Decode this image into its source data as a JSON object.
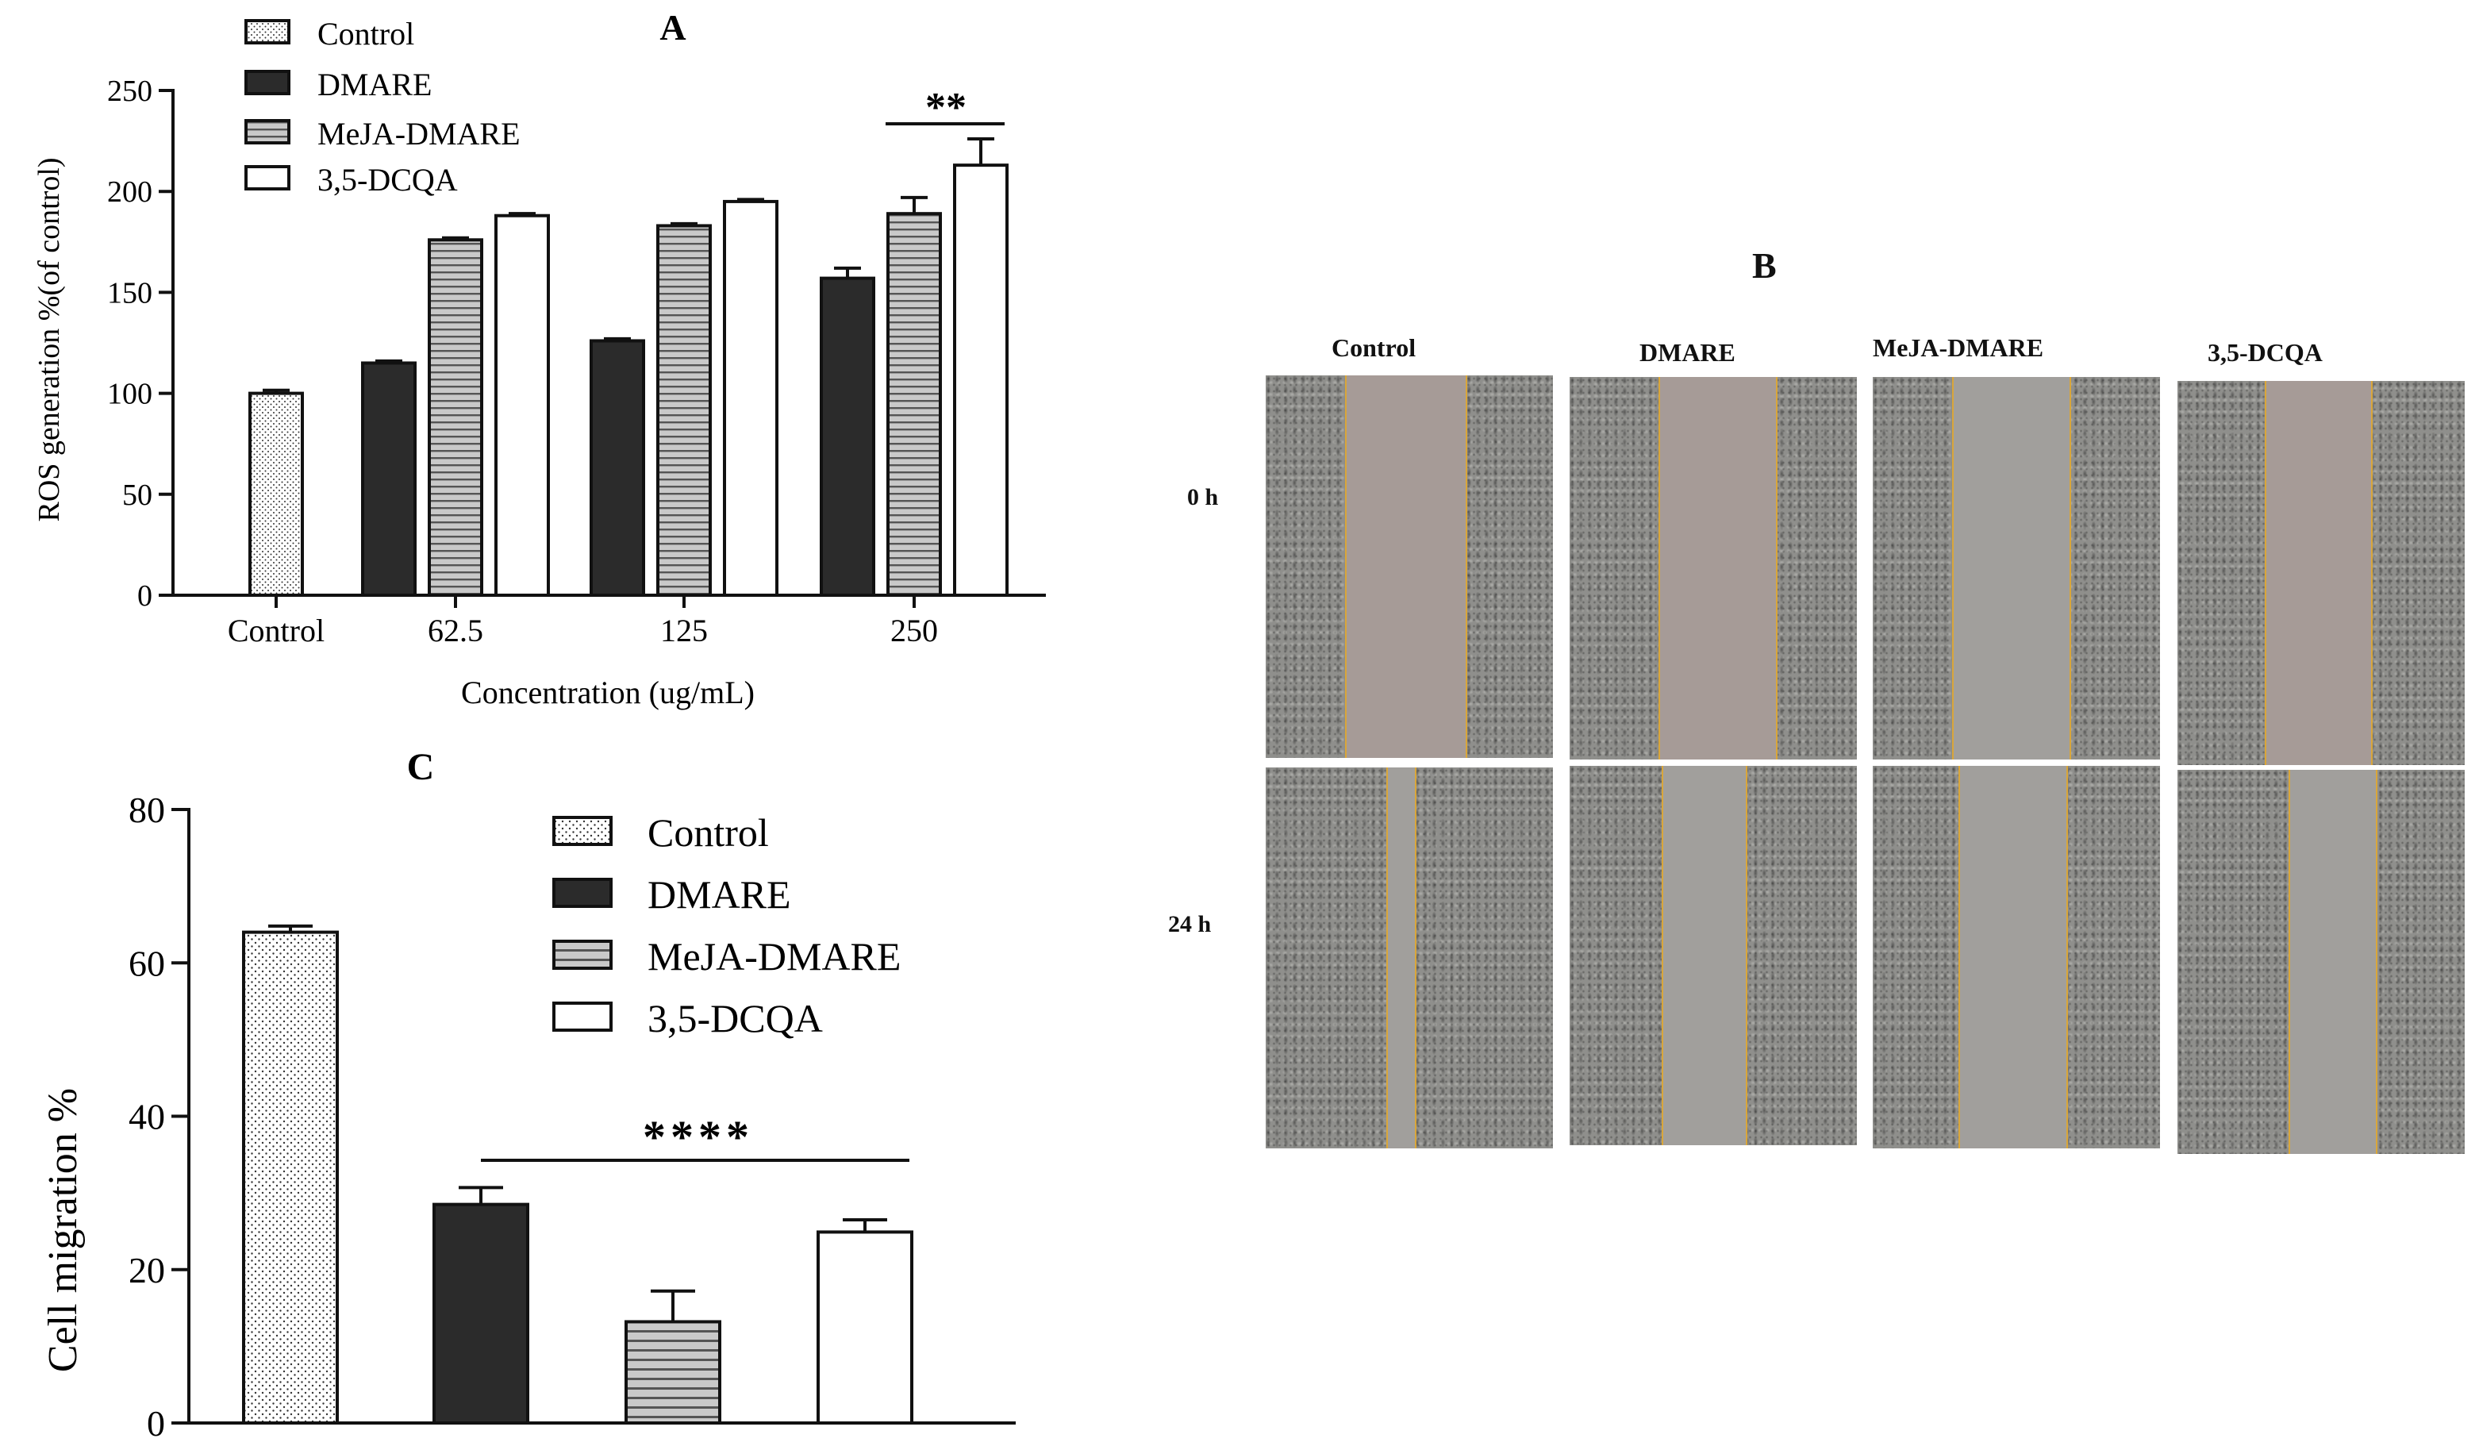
{
  "figure": {
    "panel_a_label": "A",
    "panel_b_label": "B",
    "panel_c_label": "C"
  },
  "chart_data": [
    {
      "id": "A",
      "type": "bar",
      "title": "A",
      "xlabel": "Concentration (ug/mL)",
      "ylabel": "ROS generation %(of control)",
      "ylim": [
        0,
        250
      ],
      "yticks": [
        "0",
        "50",
        "100",
        "150",
        "200",
        "250"
      ],
      "categories": [
        "Control",
        "62.5",
        "125",
        "250"
      ],
      "series": [
        {
          "name": "Control",
          "pattern": "dots",
          "values": [
            100,
            null,
            null,
            null
          ],
          "errors": [
            1.5,
            null,
            null,
            null
          ]
        },
        {
          "name": "DMARE",
          "pattern": "solid",
          "values": [
            null,
            115,
            126,
            157
          ],
          "errors": [
            null,
            1,
            1,
            5
          ]
        },
        {
          "name": "MeJA-DMARE",
          "pattern": "hlines",
          "values": [
            null,
            176,
            183,
            189
          ],
          "errors": [
            null,
            1,
            1,
            8
          ]
        },
        {
          "name": "3,5-DCQA",
          "pattern": "open",
          "values": [
            null,
            188,
            195,
            213
          ],
          "errors": [
            null,
            1,
            1,
            13
          ]
        }
      ],
      "annotations": [
        {
          "text": "**",
          "category": "250"
        }
      ],
      "legend": "top-left"
    },
    {
      "id": "C",
      "type": "bar",
      "title": "C",
      "xlabel": "",
      "ylabel": "Cell migration %",
      "ylim": [
        0,
        80
      ],
      "yticks": [
        "0",
        "20",
        "40",
        "60",
        "80"
      ],
      "categories": [
        "Control",
        "DMARE",
        "MeJA-DMARE",
        "3,5-DCQA"
      ],
      "values": [
        64,
        28.5,
        13.2,
        24.9
      ],
      "errors": [
        0.8,
        2.2,
        4.0,
        1.6
      ],
      "patterns": [
        "dots",
        "solid",
        "hlines",
        "open"
      ],
      "legend_entries": [
        "Control",
        "DMARE",
        "MeJA-DMARE",
        "3,5-DCQA"
      ],
      "annotations": [
        {
          "text": "****",
          "span": [
            "DMARE",
            "3,5-DCQA"
          ]
        }
      ],
      "legend": "top-right"
    }
  ],
  "panel_b": {
    "columns": [
      "Control",
      "DMARE",
      "MeJA-DMARE",
      "3,5-DCQA"
    ],
    "rows": [
      "0 h",
      "24 h"
    ]
  }
}
